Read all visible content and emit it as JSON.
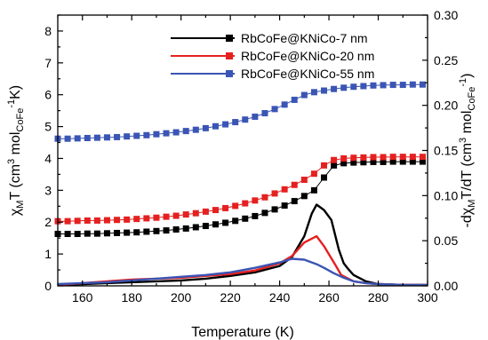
{
  "chart_data": {
    "type": "line",
    "xlabel": "Temperature (K)",
    "ylabel_left": {
      "main": "χ",
      "sub1": "M",
      "mid": "T (cm",
      "sup": "3",
      "mid2": " mol",
      "sub2": "CoFe",
      "sup2": "-1",
      "end": "K)"
    },
    "ylabel_right": {
      "start": "-d",
      "chi": "χ",
      "sub1": "M",
      "mid": "T/dT (cm",
      "sup": "3",
      "mid2": " mol",
      "sub2": "CoFe",
      "sup2": "-1",
      "end": ")"
    },
    "xlim": [
      150,
      300
    ],
    "ylim_left": [
      0,
      8.5
    ],
    "ylim_right": [
      0,
      0.3
    ],
    "xticks": [
      160,
      180,
      200,
      220,
      240,
      260,
      280,
      300
    ],
    "yticks_left": [
      0,
      1,
      2,
      3,
      4,
      5,
      6,
      7,
      8
    ],
    "yticks_right": [
      "0.00",
      "0.05",
      "0.10",
      "0.15",
      "0.20",
      "0.25",
      "0.30"
    ],
    "legend_position": "top-right",
    "series": [
      {
        "name": "RbCoFe@KNiCo-7 nm",
        "color": "#000000",
        "chiT": {
          "x": [
            150,
            154,
            158,
            162,
            166,
            170,
            174,
            178,
            182,
            186,
            190,
            194,
            198,
            202,
            206,
            210,
            214,
            218,
            222,
            226,
            230,
            234,
            238,
            242,
            246,
            250,
            254,
            258,
            262,
            266,
            270,
            274,
            278,
            282,
            286,
            290,
            294,
            298
          ],
          "y": [
            1.63,
            1.63,
            1.63,
            1.64,
            1.64,
            1.65,
            1.66,
            1.67,
            1.68,
            1.7,
            1.72,
            1.74,
            1.77,
            1.8,
            1.84,
            1.88,
            1.93,
            1.98,
            2.04,
            2.11,
            2.19,
            2.29,
            2.4,
            2.52,
            2.66,
            2.82,
            3.0,
            3.4,
            3.78,
            3.85,
            3.87,
            3.88,
            3.89,
            3.89,
            3.9,
            3.9,
            3.9,
            3.9
          ]
        },
        "derivative": {
          "x": [
            150,
            160,
            170,
            180,
            190,
            200,
            210,
            220,
            230,
            240,
            245,
            250,
            253,
            255,
            258,
            261,
            264,
            266,
            268,
            270,
            275,
            280,
            290,
            300
          ],
          "y": [
            0.001,
            0.002,
            0.003,
            0.004,
            0.005,
            0.006,
            0.008,
            0.011,
            0.015,
            0.022,
            0.032,
            0.055,
            0.08,
            0.09,
            0.084,
            0.073,
            0.04,
            0.025,
            0.018,
            0.012,
            0.005,
            0.002,
            0.001,
            0.001
          ]
        }
      },
      {
        "name": "RbCoFe@KNiCo-20 nm",
        "color": "#e52020",
        "chiT": {
          "x": [
            150,
            154,
            158,
            162,
            166,
            170,
            174,
            178,
            182,
            186,
            190,
            194,
            198,
            202,
            206,
            210,
            214,
            218,
            222,
            226,
            230,
            234,
            238,
            242,
            246,
            250,
            254,
            258,
            262,
            266,
            270,
            274,
            278,
            282,
            286,
            290,
            294,
            298
          ],
          "y": [
            2.03,
            2.03,
            2.04,
            2.05,
            2.05,
            2.06,
            2.07,
            2.08,
            2.1,
            2.12,
            2.14,
            2.17,
            2.2,
            2.24,
            2.28,
            2.33,
            2.38,
            2.44,
            2.51,
            2.59,
            2.68,
            2.78,
            2.9,
            3.03,
            3.17,
            3.33,
            3.52,
            3.78,
            3.95,
            4.0,
            4.02,
            4.03,
            4.04,
            4.04,
            4.05,
            4.05,
            4.05,
            4.05
          ]
        },
        "derivative": {
          "x": [
            150,
            160,
            170,
            180,
            190,
            200,
            210,
            220,
            230,
            240,
            245,
            250,
            255,
            258,
            262,
            265,
            270,
            275,
            280,
            290,
            300
          ],
          "y": [
            0.001,
            0.003,
            0.005,
            0.007,
            0.008,
            0.009,
            0.011,
            0.013,
            0.017,
            0.025,
            0.033,
            0.048,
            0.055,
            0.044,
            0.026,
            0.012,
            0.005,
            0.003,
            0.002,
            0.001,
            0.001
          ]
        }
      },
      {
        "name": "RbCoFe@KNiCo-55 nm",
        "color": "#3a55b4",
        "chiT": {
          "x": [
            150,
            154,
            158,
            162,
            166,
            170,
            174,
            178,
            182,
            186,
            190,
            194,
            198,
            202,
            206,
            210,
            214,
            218,
            222,
            226,
            230,
            234,
            238,
            242,
            246,
            250,
            254,
            258,
            262,
            266,
            270,
            274,
            278,
            282,
            286,
            290,
            294,
            298
          ],
          "y": [
            4.62,
            4.62,
            4.63,
            4.64,
            4.65,
            4.66,
            4.67,
            4.69,
            4.71,
            4.73,
            4.76,
            4.79,
            4.82,
            4.86,
            4.9,
            4.95,
            5.01,
            5.07,
            5.14,
            5.22,
            5.31,
            5.42,
            5.55,
            5.69,
            5.84,
            5.99,
            6.08,
            6.13,
            6.18,
            6.22,
            6.25,
            6.27,
            6.29,
            6.3,
            6.31,
            6.31,
            6.32,
            6.32
          ]
        },
        "derivative": {
          "x": [
            150,
            160,
            170,
            180,
            190,
            200,
            210,
            220,
            230,
            240,
            245,
            250,
            255,
            258,
            262,
            266,
            270,
            275,
            280,
            290,
            300
          ],
          "y": [
            0.002,
            0.003,
            0.004,
            0.006,
            0.008,
            0.01,
            0.012,
            0.015,
            0.02,
            0.026,
            0.03,
            0.029,
            0.024,
            0.02,
            0.014,
            0.009,
            0.005,
            0.003,
            0.002,
            0.001,
            0.001
          ]
        }
      }
    ]
  }
}
